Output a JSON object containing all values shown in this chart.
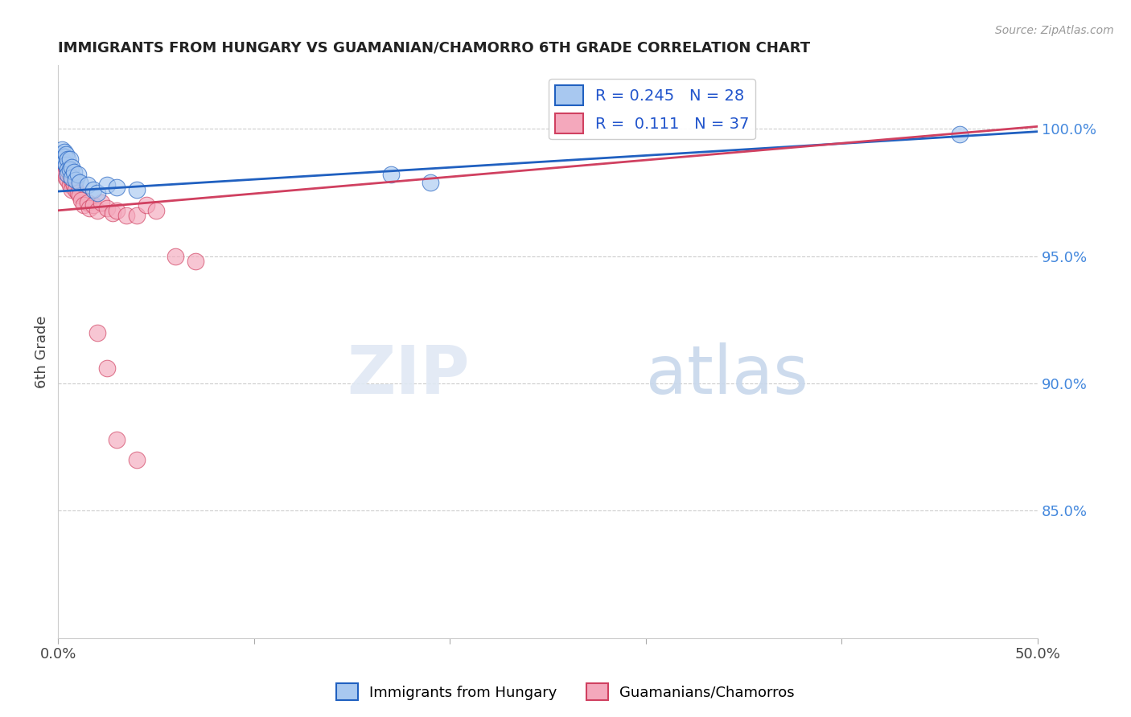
{
  "title": "IMMIGRANTS FROM HUNGARY VS GUAMANIAN/CHAMORRO 6TH GRADE CORRELATION CHART",
  "source": "Source: ZipAtlas.com",
  "ylabel": "6th Grade",
  "xlim": [
    0.0,
    0.5
  ],
  "ylim": [
    0.8,
    1.025
  ],
  "xticks": [
    0.0,
    0.1,
    0.2,
    0.3,
    0.4,
    0.5
  ],
  "xticklabels": [
    "0.0%",
    "",
    "",
    "",
    "",
    "50.0%"
  ],
  "yticks_right": [
    0.85,
    0.9,
    0.95,
    1.0
  ],
  "yticklabels_right": [
    "85.0%",
    "90.0%",
    "95.0%",
    "100.0%"
  ],
  "r_hungary": 0.245,
  "n_hungary": 28,
  "r_guamanian": 0.111,
  "n_guamanian": 37,
  "color_hungary": "#A8C8F0",
  "color_guamanian": "#F4A8BC",
  "trendline_color_hungary": "#2060C0",
  "trendline_color_guamanian": "#D04060",
  "legend_label_hungary": "Immigrants from Hungary",
  "legend_label_guamanian": "Guamanians/Chamorros",
  "hungary_x": [
    0.001,
    0.002,
    0.002,
    0.003,
    0.003,
    0.003,
    0.004,
    0.004,
    0.005,
    0.005,
    0.005,
    0.006,
    0.006,
    0.007,
    0.007,
    0.008,
    0.009,
    0.01,
    0.011,
    0.015,
    0.018,
    0.02,
    0.025,
    0.03,
    0.04,
    0.17,
    0.19,
    0.46
  ],
  "hungary_y": [
    0.99,
    0.992,
    0.988,
    0.991,
    0.989,
    0.987,
    0.99,
    0.986,
    0.988,
    0.984,
    0.982,
    0.988,
    0.984,
    0.985,
    0.981,
    0.983,
    0.98,
    0.982,
    0.979,
    0.978,
    0.976,
    0.975,
    0.978,
    0.977,
    0.976,
    0.982,
    0.979,
    0.998
  ],
  "guamanian_x": [
    0.001,
    0.002,
    0.002,
    0.003,
    0.003,
    0.004,
    0.004,
    0.005,
    0.005,
    0.006,
    0.006,
    0.007,
    0.007,
    0.008,
    0.009,
    0.01,
    0.011,
    0.012,
    0.013,
    0.015,
    0.016,
    0.018,
    0.02,
    0.022,
    0.025,
    0.028,
    0.03,
    0.035,
    0.04,
    0.045,
    0.05,
    0.06,
    0.07,
    0.02,
    0.025,
    0.03,
    0.04
  ],
  "guamanian_y": [
    0.986,
    0.988,
    0.984,
    0.987,
    0.983,
    0.985,
    0.981,
    0.984,
    0.98,
    0.982,
    0.978,
    0.98,
    0.976,
    0.978,
    0.976,
    0.975,
    0.974,
    0.972,
    0.97,
    0.971,
    0.969,
    0.97,
    0.968,
    0.971,
    0.969,
    0.967,
    0.968,
    0.966,
    0.966,
    0.97,
    0.968,
    0.95,
    0.948,
    0.92,
    0.906,
    0.878,
    0.87
  ]
}
